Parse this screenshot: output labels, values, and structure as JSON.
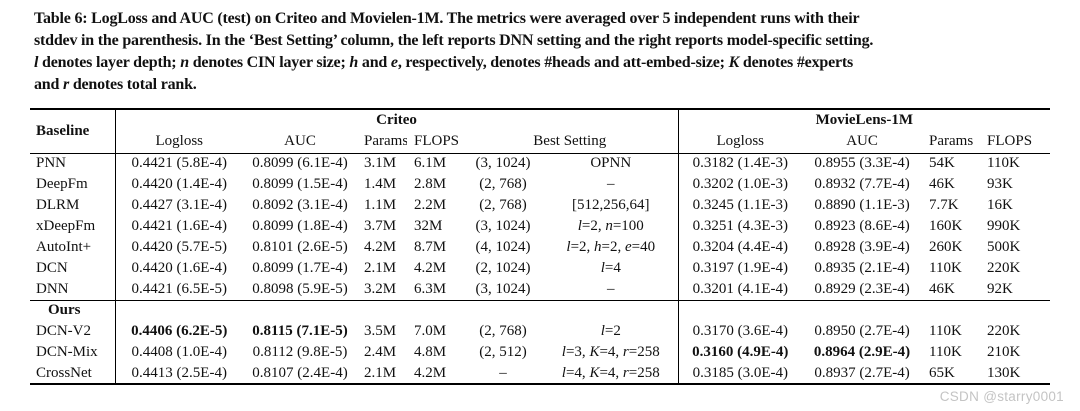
{
  "caption": {
    "lines": [
      "Table 6: LogLoss and AUC (test) on Criteo and Movielen-1M. The metrics were averaged over 5 independent runs with their",
      "stddev in the parenthesis. In the ‘Best Setting’ column, the left reports DNN setting and the right reports model-specific setting.",
      "*l* denotes layer depth; *n* denotes CIN layer size; *h* and *e*, respectively, denotes #heads and att-embed-size; *K* denotes #experts",
      "and *r* denotes total rank."
    ]
  },
  "table": {
    "headers": {
      "baseline": "Baseline",
      "criteo": "Criteo",
      "movielens": "MovieLens-1M",
      "logloss": "Logloss",
      "auc": "AUC",
      "params": "Params",
      "flops": "FLOPS",
      "best_setting": "Best Setting"
    },
    "ours_label": "Ours",
    "baseline_rows": [
      {
        "name": "PNN",
        "cells": [
          "0.4421 (5.8E-4)",
          "0.8099 (6.1E-4)",
          "3.1M",
          "6.1M",
          "(3, 1024)",
          "OPNN",
          "0.3182 (1.4E-3)",
          "0.8955 (3.3E-4)",
          "54K",
          "110K"
        ]
      },
      {
        "name": "DeepFm",
        "cells": [
          "0.4420 (1.4E-4)",
          "0.8099 (1.5E-4)",
          "1.4M",
          "2.8M",
          "(2, 768)",
          "–",
          "0.3202 (1.0E-3)",
          "0.8932 (7.7E-4)",
          "46K",
          "93K"
        ]
      },
      {
        "name": "DLRM",
        "cells": [
          "0.4427 (3.1E-4)",
          "0.8092 (3.1E-4)",
          "1.1M",
          "2.2M",
          "(2, 768)",
          "[512,256,64]",
          "0.3245 (1.1E-3)",
          "0.8890 (1.1E-3)",
          "7.7K",
          "16K"
        ]
      },
      {
        "name": "xDeepFm",
        "cells": [
          "0.4421 (1.6E-4)",
          "0.8099 (1.8E-4)",
          "3.7M",
          "32M",
          "(3, 1024)",
          "*l*=2, *n*=100",
          "0.3251 (4.3E-3)",
          "0.8923 (8.6E-4)",
          "160K",
          "990K"
        ]
      },
      {
        "name": "AutoInt+",
        "cells": [
          "0.4420 (5.7E-5)",
          "0.8101 (2.6E-5)",
          "4.2M",
          "8.7M",
          "(4, 1024)",
          "*l*=2, *h*=2, *e*=40",
          "0.3204 (4.4E-4)",
          "0.8928 (3.9E-4)",
          "260K",
          "500K"
        ]
      },
      {
        "name": "DCN",
        "cells": [
          "0.4420 (1.6E-4)",
          "0.8099 (1.7E-4)",
          "2.1M",
          "4.2M",
          "(2, 1024)",
          "*l*=4",
          "0.3197 (1.9E-4)",
          "0.8935 (2.1E-4)",
          "110K",
          "220K"
        ]
      },
      {
        "name": "DNN",
        "cells": [
          "0.4421 (6.5E-5)",
          "0.8098 (5.9E-5)",
          "3.2M",
          "6.3M",
          "(3, 1024)",
          "–",
          "0.3201 (4.1E-4)",
          "0.8929 (2.3E-4)",
          "46K",
          "92K"
        ]
      }
    ],
    "ours_rows": [
      {
        "name": "DCN-V2",
        "cells": [
          "**0.4406 (6.2E-5)**",
          "**0.8115 (7.1E-5)**",
          "3.5M",
          "7.0M",
          "(2, 768)",
          "*l*=2",
          "0.3170 (3.6E-4)",
          "0.8950 (2.7E-4)",
          "110K",
          "220K"
        ]
      },
      {
        "name": "DCN-Mix",
        "cells": [
          "0.4408 (1.0E-4)",
          "0.8112 (9.8E-5)",
          "2.4M",
          "4.8M",
          "(2, 512)",
          "*l*=3, *K*=4, *r*=258",
          "**0.3160 (4.9E-4)**",
          "**0.8964 (2.9E-4)**",
          "110K",
          "210K"
        ]
      },
      {
        "name": "CrossNet",
        "cells": [
          "0.4413 (2.5E-4)",
          "0.8107 (2.4E-4)",
          "2.1M",
          "4.2M",
          "–",
          "*l*=4, *K*=4, *r*=258",
          "0.3185 (3.0E-4)",
          "0.8937 (2.7E-4)",
          "65K",
          "130K"
        ]
      }
    ]
  },
  "watermark": "CSDN @starry0001"
}
